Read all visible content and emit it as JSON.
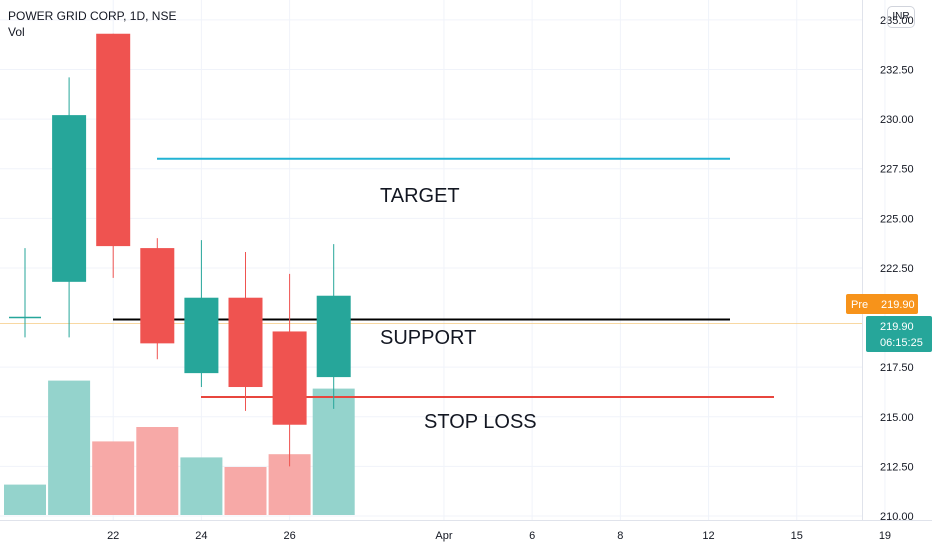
{
  "header": {
    "title": "POWER GRID CORP, 1D, NSE",
    "volume_label": "Vol"
  },
  "currency": "INR",
  "price_labels": {
    "premarket_tag": "Pre",
    "premarket_price": "219.90",
    "last_price": "219.90",
    "countdown": "06:15:25"
  },
  "colors": {
    "up": "#26a69a",
    "down": "#ef5350",
    "up_volume": "#94d3cc",
    "down_volume": "#f7a9a7",
    "target_line": "#22b3d4",
    "support_line": "#000000",
    "stop_loss_line": "#e8463e",
    "premarket_tag": "#f7931a",
    "axis_text": "#131722"
  },
  "annotations": {
    "target": "TARGET",
    "support": "SUPPORT",
    "stop_loss": "STOP LOSS"
  },
  "chart_data": {
    "type": "candlestick",
    "y_axis": {
      "ticks": [
        "235.00",
        "232.50",
        "230.00",
        "227.50",
        "225.00",
        "222.50",
        "217.50",
        "215.00",
        "212.50",
        "210.00"
      ],
      "range": [
        209.8,
        236.0
      ]
    },
    "x_axis": {
      "ticks": [
        "22",
        "24",
        "26",
        "Apr",
        "6",
        "8",
        "12",
        "15",
        "19"
      ]
    },
    "candles": [
      {
        "open": 219.7,
        "high": 223.5,
        "low": 219.0,
        "close": 220.0,
        "volume": 0.19
      },
      {
        "open": 221.8,
        "high": 232.1,
        "low": 219.0,
        "close": 230.2,
        "volume": 0.84
      },
      {
        "open": 234.3,
        "high": 234.3,
        "low": 222.0,
        "close": 223.6,
        "volume": 0.46
      },
      {
        "open": 223.5,
        "high": 224.0,
        "low": 217.9,
        "close": 218.7,
        "volume": 0.55
      },
      {
        "open": 217.2,
        "high": 223.9,
        "low": 216.5,
        "close": 221.0,
        "volume": 0.36
      },
      {
        "open": 221.0,
        "high": 223.3,
        "low": 215.3,
        "close": 216.5,
        "volume": 0.3
      },
      {
        "open": 219.3,
        "high": 222.2,
        "low": 212.5,
        "close": 214.6,
        "volume": 0.38
      },
      {
        "open": 217.0,
        "high": 223.7,
        "low": 215.4,
        "close": 221.1,
        "volume": 0.79
      }
    ],
    "levels": [
      {
        "name": "TARGET",
        "value": 228.0
      },
      {
        "name": "SUPPORT",
        "value": 219.9
      },
      {
        "name": "STOP LOSS",
        "value": 216.0
      }
    ]
  }
}
